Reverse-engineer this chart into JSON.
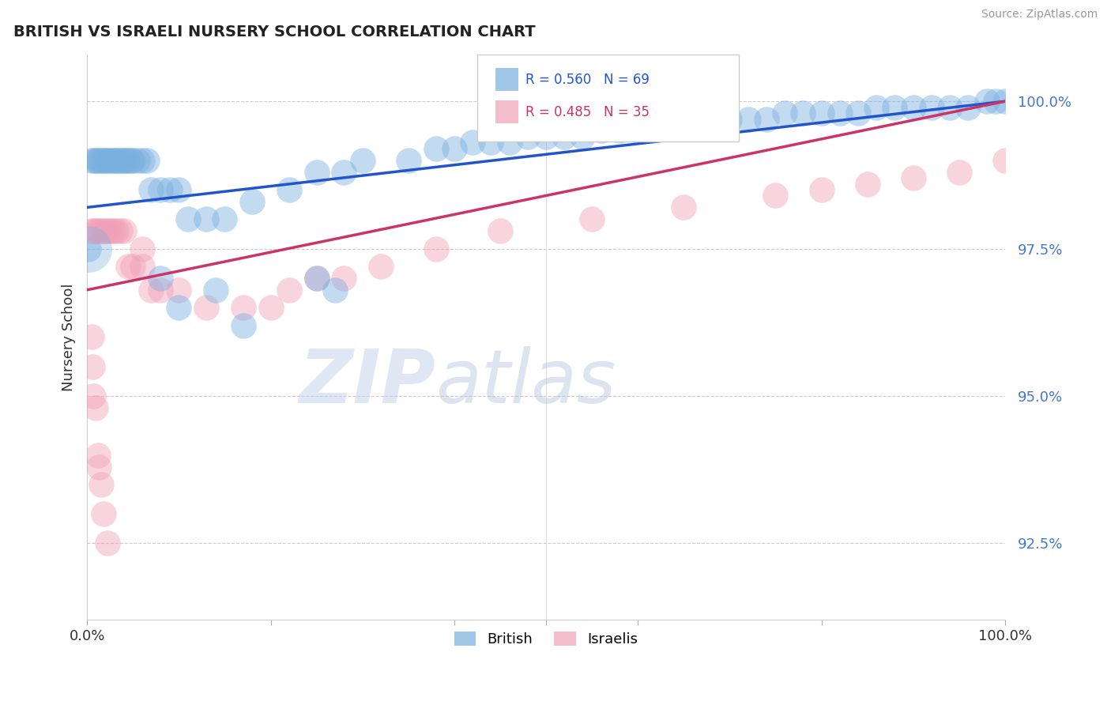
{
  "title": "BRITISH VS ISRAELI NURSERY SCHOOL CORRELATION CHART",
  "source": "Source: ZipAtlas.com",
  "ylabel": "Nursery School",
  "ytick_labels": [
    "100.0%",
    "97.5%",
    "95.0%",
    "92.5%"
  ],
  "ytick_values": [
    1.0,
    0.975,
    0.95,
    0.925
  ],
  "xlim": [
    0.0,
    1.0
  ],
  "ylim": [
    0.912,
    1.008
  ],
  "british_color": "#7ab0df",
  "israeli_color": "#f0a0b8",
  "british_line_color": "#2255cc",
  "israeli_line_color": "#cc3366",
  "watermark_zip": "ZIP",
  "watermark_atlas": "atlas",
  "legend_british_r": "R = 0.560",
  "legend_british_n": "N = 69",
  "legend_israeli_r": "R = 0.485",
  "legend_israeli_n": "N = 35",
  "british_line_x0": 0.0,
  "british_line_y0": 0.982,
  "british_line_x1": 1.0,
  "british_line_y1": 1.0,
  "israeli_line_x0": 0.0,
  "israeli_line_y0": 0.968,
  "israeli_line_x1": 1.0,
  "israeli_line_y1": 1.0,
  "british_x": [
    0.005,
    0.008,
    0.01,
    0.012,
    0.015,
    0.018,
    0.02,
    0.022,
    0.025,
    0.028,
    0.03,
    0.032,
    0.035,
    0.038,
    0.04,
    0.042,
    0.045,
    0.048,
    0.05,
    0.055,
    0.06,
    0.065,
    0.07,
    0.08,
    0.09,
    0.1,
    0.11,
    0.13,
    0.15,
    0.18,
    0.22,
    0.25,
    0.28,
    0.3,
    0.35,
    0.38,
    0.4,
    0.42,
    0.44,
    0.46,
    0.48,
    0.5,
    0.52,
    0.54,
    0.56,
    0.58,
    0.6,
    0.62,
    0.64,
    0.66,
    0.68,
    0.7,
    0.72,
    0.74,
    0.76,
    0.78,
    0.8,
    0.82,
    0.84,
    0.86,
    0.88,
    0.9,
    0.92,
    0.94,
    0.96,
    0.98,
    0.99,
    1.0,
    0.002
  ],
  "british_y": [
    0.99,
    0.99,
    0.99,
    0.99,
    0.99,
    0.99,
    0.99,
    0.99,
    0.99,
    0.99,
    0.99,
    0.99,
    0.99,
    0.99,
    0.99,
    0.99,
    0.99,
    0.99,
    0.99,
    0.99,
    0.99,
    0.99,
    0.985,
    0.985,
    0.985,
    0.985,
    0.98,
    0.98,
    0.98,
    0.983,
    0.985,
    0.988,
    0.988,
    0.99,
    0.99,
    0.992,
    0.992,
    0.993,
    0.993,
    0.993,
    0.994,
    0.994,
    0.994,
    0.994,
    0.995,
    0.995,
    0.995,
    0.996,
    0.996,
    0.996,
    0.997,
    0.997,
    0.997,
    0.997,
    0.998,
    0.998,
    0.998,
    0.998,
    0.998,
    0.999,
    0.999,
    0.999,
    0.999,
    0.999,
    0.999,
    1.0,
    1.0,
    1.0,
    0.975
  ],
  "israeli_x": [
    0.005,
    0.008,
    0.01,
    0.013,
    0.016,
    0.019,
    0.022,
    0.025,
    0.028,
    0.032,
    0.036,
    0.04,
    0.045,
    0.05,
    0.06,
    0.07,
    0.08,
    0.1,
    0.13,
    0.17,
    0.2,
    0.22,
    0.25,
    0.28,
    0.32,
    0.38,
    0.45,
    0.55,
    0.65,
    0.75,
    0.8,
    0.85,
    0.9,
    0.95,
    1.0
  ],
  "israeli_y": [
    0.978,
    0.978,
    0.978,
    0.978,
    0.978,
    0.978,
    0.978,
    0.978,
    0.978,
    0.978,
    0.978,
    0.978,
    0.972,
    0.972,
    0.972,
    0.968,
    0.968,
    0.968,
    0.965,
    0.965,
    0.965,
    0.968,
    0.97,
    0.97,
    0.972,
    0.975,
    0.978,
    0.98,
    0.982,
    0.984,
    0.985,
    0.986,
    0.987,
    0.988,
    0.99
  ],
  "british_outlier_x": [
    0.08,
    0.1,
    0.14,
    0.17,
    0.25,
    0.27
  ],
  "british_outlier_y": [
    0.97,
    0.965,
    0.968,
    0.962,
    0.97,
    0.968
  ],
  "israeli_outlier_x": [
    0.005,
    0.006,
    0.007,
    0.009,
    0.012,
    0.015,
    0.018,
    0.022,
    0.013,
    0.06
  ],
  "israeli_outlier_y": [
    0.96,
    0.955,
    0.95,
    0.948,
    0.94,
    0.935,
    0.93,
    0.925,
    0.938,
    0.975
  ],
  "british_large_x": [
    0.002
  ],
  "british_large_y": [
    0.975
  ]
}
